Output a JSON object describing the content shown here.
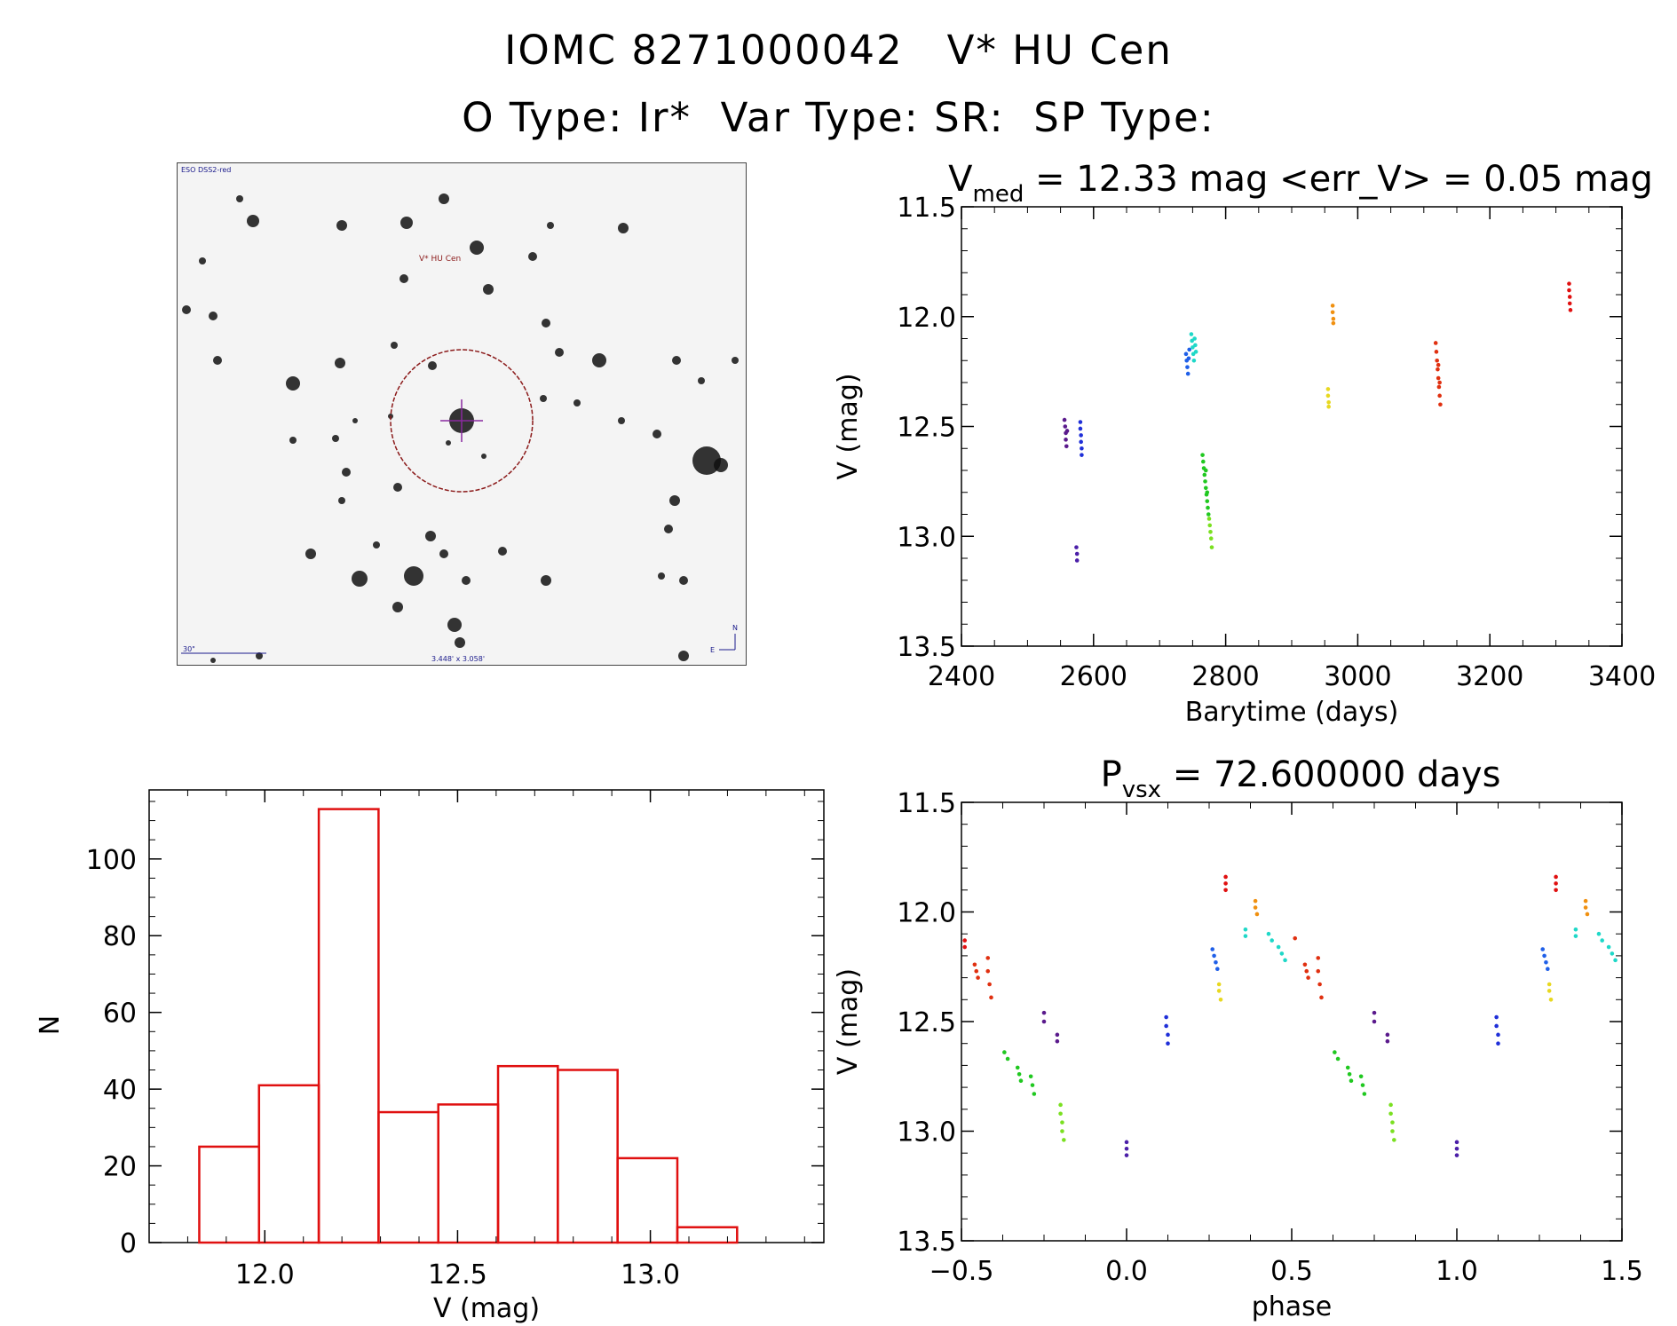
{
  "header": {
    "title": "IOMC 8271000042   V* HU Cen",
    "subtitle": "O Type: Ir*  Var Type: SR:  SP Type:"
  },
  "finder_chart": {
    "survey_label": "ESO DSS2-red",
    "target_label": "V* HU Cen",
    "scale_label": "30\"",
    "fov_label": "3.448' x 3.058'",
    "compass_n": "N",
    "compass_e": "E"
  },
  "colors": {
    "histogram": "#e01010",
    "axes": "#000000",
    "circle": "#8b1a1a",
    "finder_text": "#1a1a8b"
  },
  "chart_data": [
    {
      "id": "lightcurve",
      "type": "scatter",
      "title_main": "V",
      "title_sub": "med",
      "title_rest": " = 12.33 mag <err_V> = 0.05 mag",
      "xlabel": "Barytime (days)",
      "ylabel": "V (mag)",
      "xlim": [
        2400,
        3400
      ],
      "ylim": [
        13.5,
        11.5
      ],
      "xticks": [
        "2400",
        "2600",
        "2800",
        "3000",
        "3200",
        "3400"
      ],
      "yticks": [
        "11.5",
        "12.0",
        "12.5",
        "13.0",
        "13.5"
      ],
      "groups": [
        {
          "color": "#5a1a8c",
          "points": [
            [
              2556,
              12.47
            ],
            [
              2557,
              12.5
            ],
            [
              2558,
              12.53
            ],
            [
              2558,
              12.56
            ],
            [
              2559,
              12.59
            ],
            [
              2560,
              12.52
            ]
          ]
        },
        {
          "color": "#4b1fa8",
          "points": [
            [
              2574,
              13.05
            ],
            [
              2575,
              13.08
            ],
            [
              2575,
              13.11
            ]
          ]
        },
        {
          "color": "#1f2fd8",
          "points": [
            [
              2580,
              12.48
            ],
            [
              2580,
              12.51
            ],
            [
              2581,
              12.54
            ],
            [
              2581,
              12.57
            ],
            [
              2582,
              12.6
            ],
            [
              2582,
              12.63
            ]
          ]
        },
        {
          "color": "#1f5fe8",
          "points": [
            [
              2740,
              12.17
            ],
            [
              2741,
              12.2
            ],
            [
              2742,
              12.23
            ],
            [
              2743,
              12.26
            ],
            [
              2744,
              12.19
            ],
            [
              2745,
              12.15
            ]
          ]
        },
        {
          "color": "#1fd8c8",
          "points": [
            [
              2748,
              12.08
            ],
            [
              2749,
              12.11
            ],
            [
              2750,
              12.14
            ],
            [
              2751,
              12.17
            ],
            [
              2752,
              12.2
            ],
            [
              2753,
              12.1
            ],
            [
              2754,
              12.13
            ],
            [
              2755,
              12.16
            ]
          ]
        },
        {
          "color": "#20c820",
          "points": [
            [
              2765,
              12.63
            ],
            [
              2766,
              12.66
            ],
            [
              2767,
              12.69
            ],
            [
              2768,
              12.72
            ],
            [
              2769,
              12.75
            ],
            [
              2770,
              12.78
            ],
            [
              2771,
              12.81
            ],
            [
              2772,
              12.84
            ],
            [
              2773,
              12.87
            ],
            [
              2774,
              12.9
            ],
            [
              2770,
              12.7
            ],
            [
              2772,
              12.8
            ]
          ]
        },
        {
          "color": "#7ae020",
          "points": [
            [
              2775,
              12.92
            ],
            [
              2776,
              12.95
            ],
            [
              2777,
              12.98
            ],
            [
              2778,
              13.01
            ],
            [
              2779,
              13.05
            ]
          ]
        },
        {
          "color": "#e8d820",
          "points": [
            [
              2955,
              12.33
            ],
            [
              2955,
              12.36
            ],
            [
              2956,
              12.39
            ],
            [
              2956,
              12.41
            ]
          ]
        },
        {
          "color": "#f09010",
          "points": [
            [
              2962,
              11.95
            ],
            [
              2962,
              11.98
            ],
            [
              2963,
              12.01
            ],
            [
              2963,
              12.03
            ]
          ]
        },
        {
          "color": "#e03010",
          "points": [
            [
              3118,
              12.12
            ],
            [
              3119,
              12.16
            ],
            [
              3120,
              12.2
            ],
            [
              3121,
              12.24
            ],
            [
              3122,
              12.28
            ],
            [
              3123,
              12.32
            ],
            [
              3124,
              12.36
            ],
            [
              3125,
              12.4
            ],
            [
              3122,
              12.22
            ],
            [
              3124,
              12.3
            ]
          ]
        },
        {
          "color": "#e01010",
          "points": [
            [
              3320,
              11.85
            ],
            [
              3320,
              11.88
            ],
            [
              3321,
              11.91
            ],
            [
              3321,
              11.94
            ],
            [
              3322,
              11.97
            ]
          ]
        }
      ]
    },
    {
      "id": "histogram",
      "type": "bar",
      "xlabel": "V (mag)",
      "ylabel": "N",
      "xlim": [
        11.7,
        13.45
      ],
      "ylim": [
        0,
        118
      ],
      "xticks": [
        "12.0",
        "12.5",
        "13.0"
      ],
      "yticks": [
        "0",
        "20",
        "40",
        "60",
        "80",
        "100"
      ],
      "bin_edges": [
        11.83,
        11.985,
        12.14,
        12.295,
        12.45,
        12.605,
        12.76,
        12.915,
        13.07,
        13.225
      ],
      "values": [
        25,
        41,
        113,
        34,
        36,
        46,
        45,
        22,
        4
      ]
    },
    {
      "id": "phased",
      "type": "scatter",
      "title_main": "P",
      "title_sub": "vsx",
      "title_rest": " = 72.600000 days",
      "xlabel": "phase",
      "ylabel": "V (mag)",
      "xlim": [
        -0.5,
        1.5
      ],
      "ylim": [
        13.5,
        11.5
      ],
      "xticks": [
        "−0.5",
        "0.0",
        "0.5",
        "1.0",
        "1.5"
      ],
      "yticks": [
        "11.5",
        "12.0",
        "12.5",
        "13.0",
        "13.5"
      ],
      "groups": [
        {
          "color": "#e01010",
          "points": [
            [
              -0.49,
              12.13
            ],
            [
              -0.49,
              12.16
            ],
            [
              0.3,
              11.84
            ],
            [
              0.3,
              11.87
            ],
            [
              0.3,
              11.9
            ],
            [
              1.3,
              11.84
            ],
            [
              1.3,
              11.87
            ],
            [
              1.3,
              11.9
            ]
          ]
        },
        {
          "color": "#e03010",
          "points": [
            [
              -0.46,
              12.24
            ],
            [
              -0.455,
              12.27
            ],
            [
              -0.45,
              12.3
            ],
            [
              -0.42,
              12.21
            ],
            [
              -0.42,
              12.27
            ],
            [
              -0.415,
              12.33
            ],
            [
              -0.41,
              12.39
            ],
            [
              0.51,
              12.12
            ],
            [
              0.54,
              12.24
            ],
            [
              0.545,
              12.27
            ],
            [
              0.55,
              12.3
            ],
            [
              0.58,
              12.21
            ],
            [
              0.58,
              12.27
            ],
            [
              0.585,
              12.33
            ],
            [
              0.59,
              12.39
            ]
          ]
        },
        {
          "color": "#20c820",
          "points": [
            [
              -0.37,
              12.64
            ],
            [
              -0.36,
              12.67
            ],
            [
              -0.33,
              12.71
            ],
            [
              -0.325,
              12.74
            ],
            [
              -0.32,
              12.77
            ],
            [
              -0.29,
              12.75
            ],
            [
              -0.285,
              12.79
            ],
            [
              -0.28,
              12.83
            ],
            [
              0.63,
              12.64
            ],
            [
              0.64,
              12.67
            ],
            [
              0.67,
              12.71
            ],
            [
              0.675,
              12.74
            ],
            [
              0.68,
              12.77
            ],
            [
              0.71,
              12.75
            ],
            [
              0.715,
              12.79
            ],
            [
              0.72,
              12.83
            ]
          ]
        },
        {
          "color": "#7ae020",
          "points": [
            [
              -0.2,
              12.88
            ],
            [
              -0.2,
              12.92
            ],
            [
              -0.195,
              12.96
            ],
            [
              -0.195,
              13.0
            ],
            [
              -0.19,
              13.04
            ],
            [
              0.8,
              12.88
            ],
            [
              0.8,
              12.92
            ],
            [
              0.805,
              12.96
            ],
            [
              0.805,
              13.0
            ],
            [
              0.81,
              13.04
            ]
          ]
        },
        {
          "color": "#5a1a8c",
          "points": [
            [
              -0.25,
              12.46
            ],
            [
              -0.25,
              12.5
            ],
            [
              -0.21,
              12.56
            ],
            [
              -0.21,
              12.59
            ],
            [
              0.75,
              12.46
            ],
            [
              0.75,
              12.5
            ],
            [
              0.79,
              12.56
            ],
            [
              0.79,
              12.59
            ]
          ]
        },
        {
          "color": "#4b1fa8",
          "points": [
            [
              0.0,
              13.05
            ],
            [
              0.0,
              13.08
            ],
            [
              0.0,
              13.11
            ],
            [
              1.0,
              13.05
            ],
            [
              1.0,
              13.08
            ],
            [
              1.0,
              13.11
            ]
          ]
        },
        {
          "color": "#1f2fd8",
          "points": [
            [
              0.12,
              12.48
            ],
            [
              0.12,
              12.52
            ],
            [
              0.125,
              12.56
            ],
            [
              0.125,
              12.6
            ],
            [
              1.12,
              12.48
            ],
            [
              1.12,
              12.52
            ],
            [
              1.125,
              12.56
            ],
            [
              1.125,
              12.6
            ]
          ]
        },
        {
          "color": "#1f5fe8",
          "points": [
            [
              0.26,
              12.17
            ],
            [
              0.265,
              12.2
            ],
            [
              0.27,
              12.23
            ],
            [
              0.275,
              12.26
            ],
            [
              1.26,
              12.17
            ],
            [
              1.265,
              12.2
            ],
            [
              1.27,
              12.23
            ],
            [
              1.275,
              12.26
            ]
          ]
        },
        {
          "color": "#e8d820",
          "points": [
            [
              0.28,
              12.33
            ],
            [
              0.28,
              12.36
            ],
            [
              0.285,
              12.4
            ],
            [
              1.28,
              12.33
            ],
            [
              1.28,
              12.36
            ],
            [
              1.285,
              12.4
            ]
          ]
        },
        {
          "color": "#f09010",
          "points": [
            [
              0.39,
              11.95
            ],
            [
              0.39,
              11.98
            ],
            [
              0.395,
              12.01
            ],
            [
              1.39,
              11.95
            ],
            [
              1.39,
              11.98
            ],
            [
              1.395,
              12.01
            ]
          ]
        },
        {
          "color": "#1fd8c8",
          "points": [
            [
              0.36,
              12.08
            ],
            [
              0.36,
              12.11
            ],
            [
              0.43,
              12.1
            ],
            [
              0.44,
              12.13
            ],
            [
              0.46,
              12.16
            ],
            [
              0.47,
              12.19
            ],
            [
              0.48,
              12.22
            ],
            [
              1.36,
              12.08
            ],
            [
              1.36,
              12.11
            ],
            [
              1.43,
              12.1
            ],
            [
              1.44,
              12.13
            ],
            [
              1.46,
              12.16
            ],
            [
              1.47,
              12.19
            ],
            [
              1.48,
              12.22
            ]
          ]
        }
      ]
    }
  ]
}
